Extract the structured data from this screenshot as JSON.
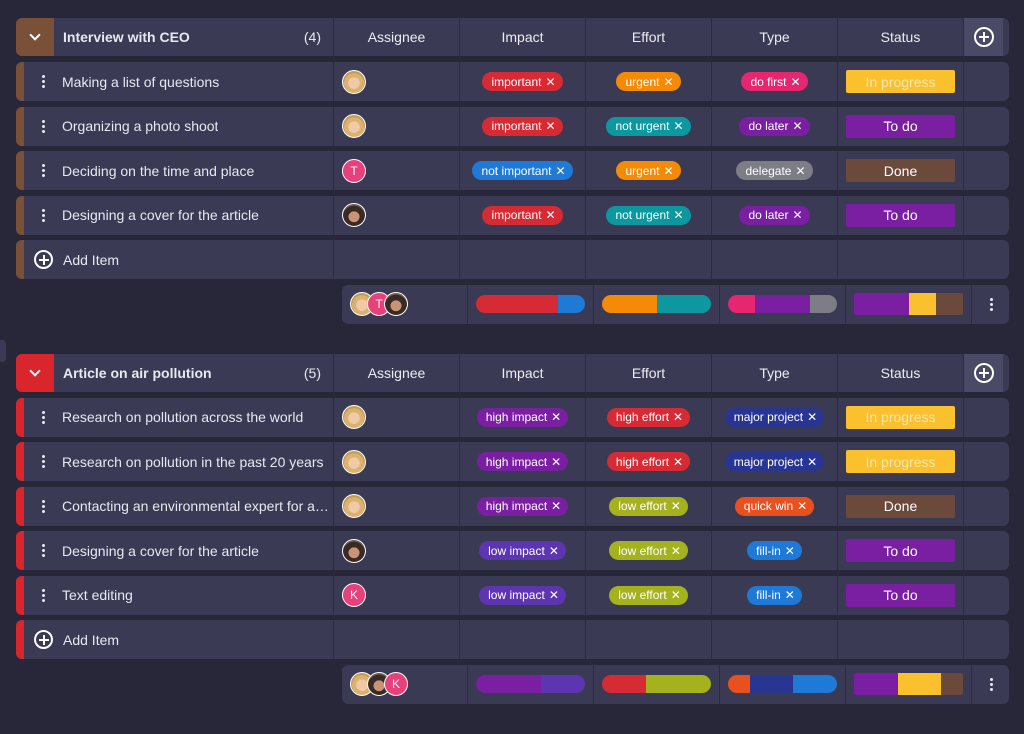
{
  "columns": [
    "Assignee",
    "Impact",
    "Effort",
    "Type",
    "Status"
  ],
  "colors": {
    "row_bg": "#3b3a54",
    "page_bg": "#272739",
    "group1_accent": "#7a5138",
    "group2_accent": "#d9262c"
  },
  "groups": [
    {
      "title": "Interview with CEO",
      "count": "(4)",
      "accent": "#7a5138",
      "add_label": "Add Item",
      "items": [
        {
          "title": "Making a list of questions",
          "avatar": "blonde",
          "impact": {
            "label": "important",
            "color": "#d62b35"
          },
          "effort": {
            "label": "urgent",
            "color": "#f58a07"
          },
          "type": {
            "label": "do first",
            "color": "#e6266f"
          },
          "status": {
            "label": "In progress",
            "color": "#fbc02d",
            "text": "#f6e7b0"
          }
        },
        {
          "title": "Organizing a photo shoot",
          "avatar": "blonde",
          "impact": {
            "label": "important",
            "color": "#d62b35"
          },
          "effort": {
            "label": "not urgent",
            "color": "#0d98a0"
          },
          "type": {
            "label": "do later",
            "color": "#7b1fa2"
          },
          "status": {
            "label": "To do",
            "color": "#7b1fa2",
            "text": "#ffffff"
          }
        },
        {
          "title": "Deciding on the time and place",
          "avatar": "T",
          "impact": {
            "label": "not important",
            "color": "#1e7ad6"
          },
          "effort": {
            "label": "urgent",
            "color": "#f58a07"
          },
          "type": {
            "label": "delegate",
            "color": "#7d7d85"
          },
          "status": {
            "label": "Done",
            "color": "#6b4a3c",
            "text": "#ffffff"
          }
        },
        {
          "title": "Designing a cover for the article",
          "avatar": "dark",
          "impact": {
            "label": "important",
            "color": "#d62b35"
          },
          "effort": {
            "label": "not urgent",
            "color": "#0d98a0"
          },
          "type": {
            "label": "do later",
            "color": "#7b1fa2"
          },
          "status": {
            "label": "To do",
            "color": "#7b1fa2",
            "text": "#ffffff"
          }
        }
      ],
      "summary": {
        "avatars": [
          "blonde",
          "T",
          "dark"
        ],
        "impact": [
          {
            "color": "#d62b35",
            "frac": 0.75
          },
          {
            "color": "#1e7ad6",
            "frac": 0.25
          }
        ],
        "effort": [
          {
            "color": "#f58a07",
            "frac": 0.5
          },
          {
            "color": "#0d98a0",
            "frac": 0.5
          }
        ],
        "type": [
          {
            "color": "#e6266f",
            "frac": 0.25
          },
          {
            "color": "#7b1fa2",
            "frac": 0.5
          },
          {
            "color": "#7d7d85",
            "frac": 0.25
          }
        ],
        "status": [
          {
            "color": "#7b1fa2",
            "frac": 0.5
          },
          {
            "color": "#fbc02d",
            "frac": 0.25
          },
          {
            "color": "#6b4a3c",
            "frac": 0.25
          }
        ]
      }
    },
    {
      "title": "Article on air pollution",
      "count": "(5)",
      "accent": "#d9262c",
      "add_label": "Add Item",
      "items": [
        {
          "title": "Research on pollution across the world",
          "avatar": "blonde",
          "impact": {
            "label": "high impact",
            "color": "#7b1fa2"
          },
          "effort": {
            "label": "high effort",
            "color": "#d62b35"
          },
          "type": {
            "label": "major project",
            "color": "#283593"
          },
          "status": {
            "label": "In progress",
            "color": "#fbc02d",
            "text": "#f6e7b0"
          }
        },
        {
          "title": "Research on pollution in the past 20 years",
          "avatar": "blonde",
          "impact": {
            "label": "high impact",
            "color": "#7b1fa2"
          },
          "effort": {
            "label": "high effort",
            "color": "#d62b35"
          },
          "type": {
            "label": "major project",
            "color": "#283593"
          },
          "status": {
            "label": "In progress",
            "color": "#fbc02d",
            "text": "#f6e7b0"
          }
        },
        {
          "title": "Contacting an environmental expert for a…",
          "avatar": "blonde",
          "impact": {
            "label": "high impact",
            "color": "#7b1fa2"
          },
          "effort": {
            "label": "low effort",
            "color": "#a4b21e"
          },
          "type": {
            "label": "quick win",
            "color": "#e8501e"
          },
          "status": {
            "label": "Done",
            "color": "#6b4a3c",
            "text": "#ffffff"
          }
        },
        {
          "title": "Designing a cover for the article",
          "avatar": "dark",
          "impact": {
            "label": "low impact",
            "color": "#5e35b1"
          },
          "effort": {
            "label": "low effort",
            "color": "#a4b21e"
          },
          "type": {
            "label": "fill-in",
            "color": "#1e7ad6"
          },
          "status": {
            "label": "To do",
            "color": "#7b1fa2",
            "text": "#ffffff"
          }
        },
        {
          "title": "Text editing",
          "avatar": "K",
          "impact": {
            "label": "low impact",
            "color": "#5e35b1"
          },
          "effort": {
            "label": "low effort",
            "color": "#a4b21e"
          },
          "type": {
            "label": "fill-in",
            "color": "#1e7ad6"
          },
          "status": {
            "label": "To do",
            "color": "#7b1fa2",
            "text": "#ffffff"
          }
        }
      ],
      "summary": {
        "avatars": [
          "blonde",
          "dark",
          "K"
        ],
        "impact": [
          {
            "color": "#7b1fa2",
            "frac": 0.6
          },
          {
            "color": "#5e35b1",
            "frac": 0.4
          }
        ],
        "effort": [
          {
            "color": "#d62b35",
            "frac": 0.4
          },
          {
            "color": "#a4b21e",
            "frac": 0.6
          }
        ],
        "type": [
          {
            "color": "#e8501e",
            "frac": 0.2
          },
          {
            "color": "#283593",
            "frac": 0.4
          },
          {
            "color": "#1e7ad6",
            "frac": 0.4
          }
        ],
        "status": [
          {
            "color": "#7b1fa2",
            "frac": 0.4
          },
          {
            "color": "#fbc02d",
            "frac": 0.4
          },
          {
            "color": "#6b4a3c",
            "frac": 0.2
          }
        ]
      }
    }
  ]
}
